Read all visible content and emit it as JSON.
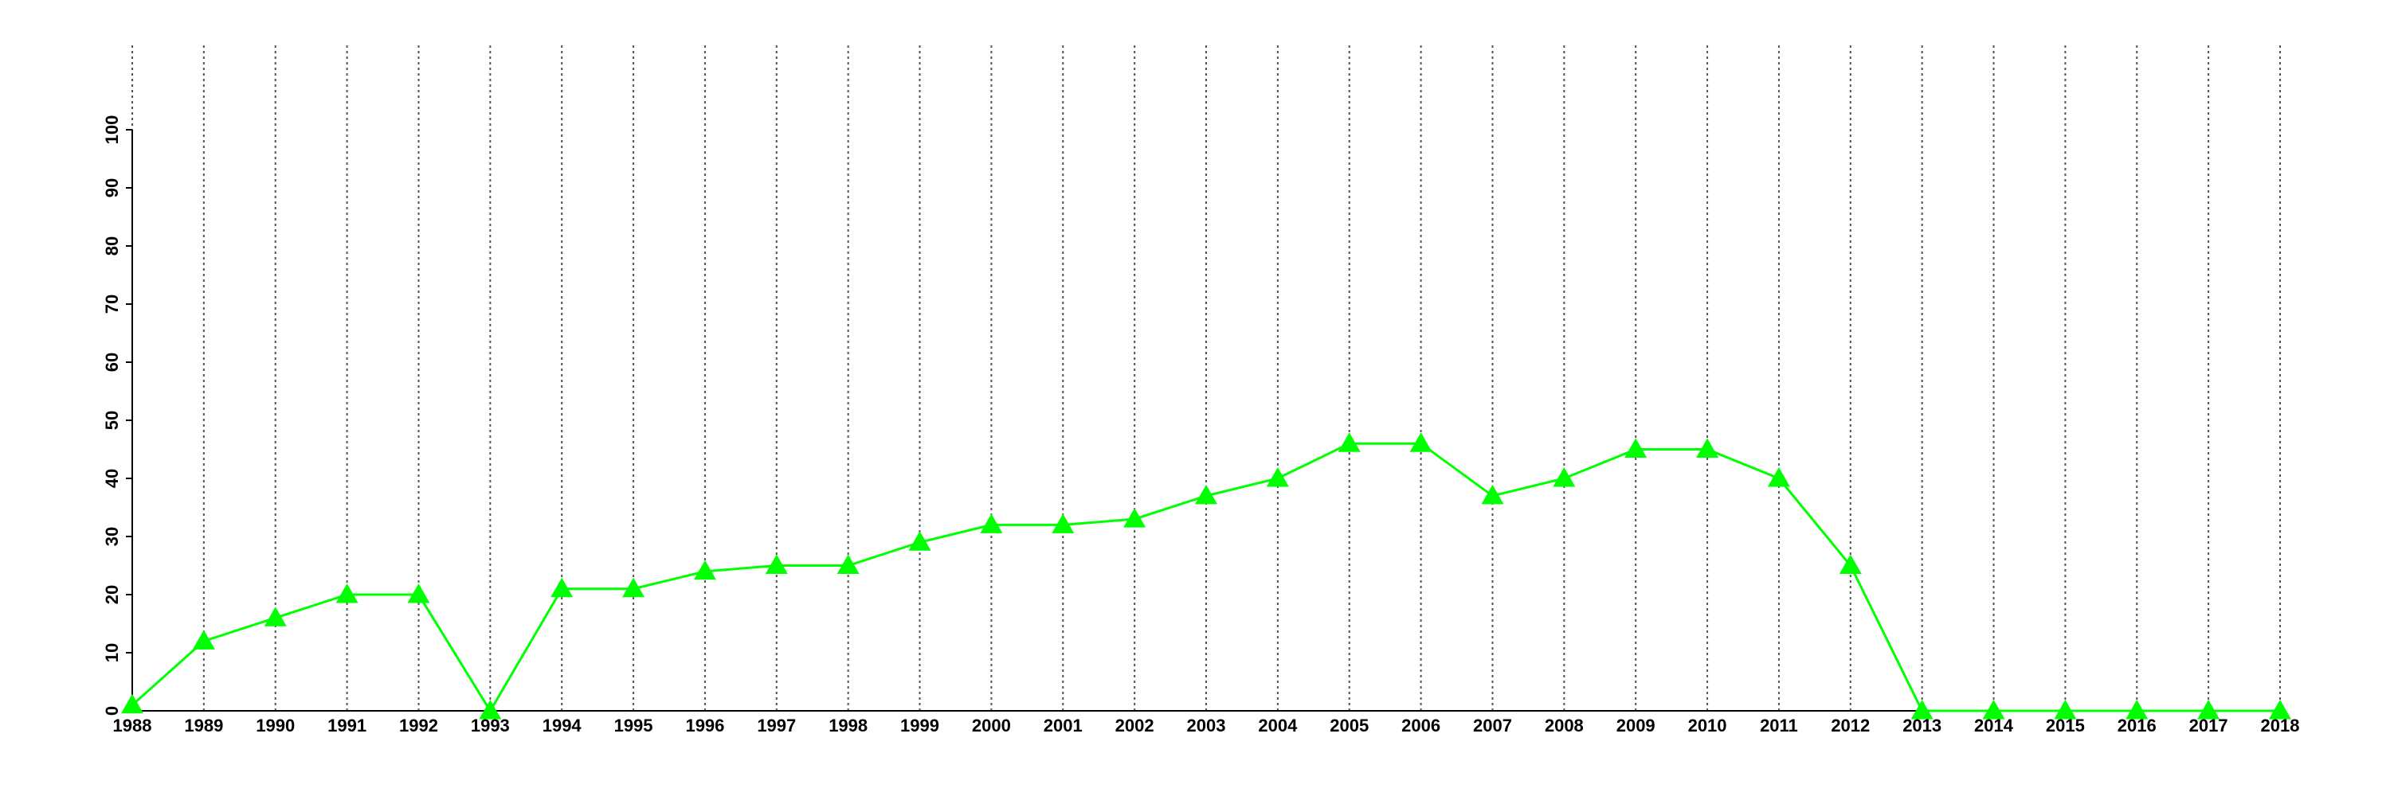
{
  "chart_data": {
    "type": "line",
    "x": [
      1988,
      1989,
      1990,
      1991,
      1992,
      1993,
      1994,
      1995,
      1996,
      1997,
      1998,
      1999,
      2000,
      2001,
      2002,
      2003,
      2004,
      2005,
      2006,
      2007,
      2008,
      2009,
      2010,
      2011,
      2012,
      2013,
      2014,
      2015,
      2016,
      2017,
      2018
    ],
    "values": [
      1,
      12,
      16,
      20,
      20,
      0,
      21,
      21,
      24,
      25,
      25,
      29,
      32,
      32,
      33,
      37,
      40,
      46,
      46,
      37,
      40,
      45,
      45,
      40,
      25,
      0,
      0,
      0,
      0,
      0,
      0
    ],
    "color": "#00ff00",
    "xlim": [
      1988,
      2018
    ],
    "xticks": [
      1988,
      1989,
      1990,
      1991,
      1992,
      1993,
      1994,
      1995,
      1996,
      1997,
      1998,
      1999,
      2000,
      2001,
      2002,
      2003,
      2004,
      2005,
      2006,
      2007,
      2008,
      2009,
      2010,
      2011,
      2012,
      2013,
      2014,
      2015,
      2016,
      2017,
      2018
    ],
    "ylim": [
      0,
      100
    ],
    "yticks": [
      0,
      10,
      20,
      30,
      40,
      50,
      60,
      70,
      80,
      90,
      100
    ],
    "grid": "x",
    "marker": "triangle"
  }
}
